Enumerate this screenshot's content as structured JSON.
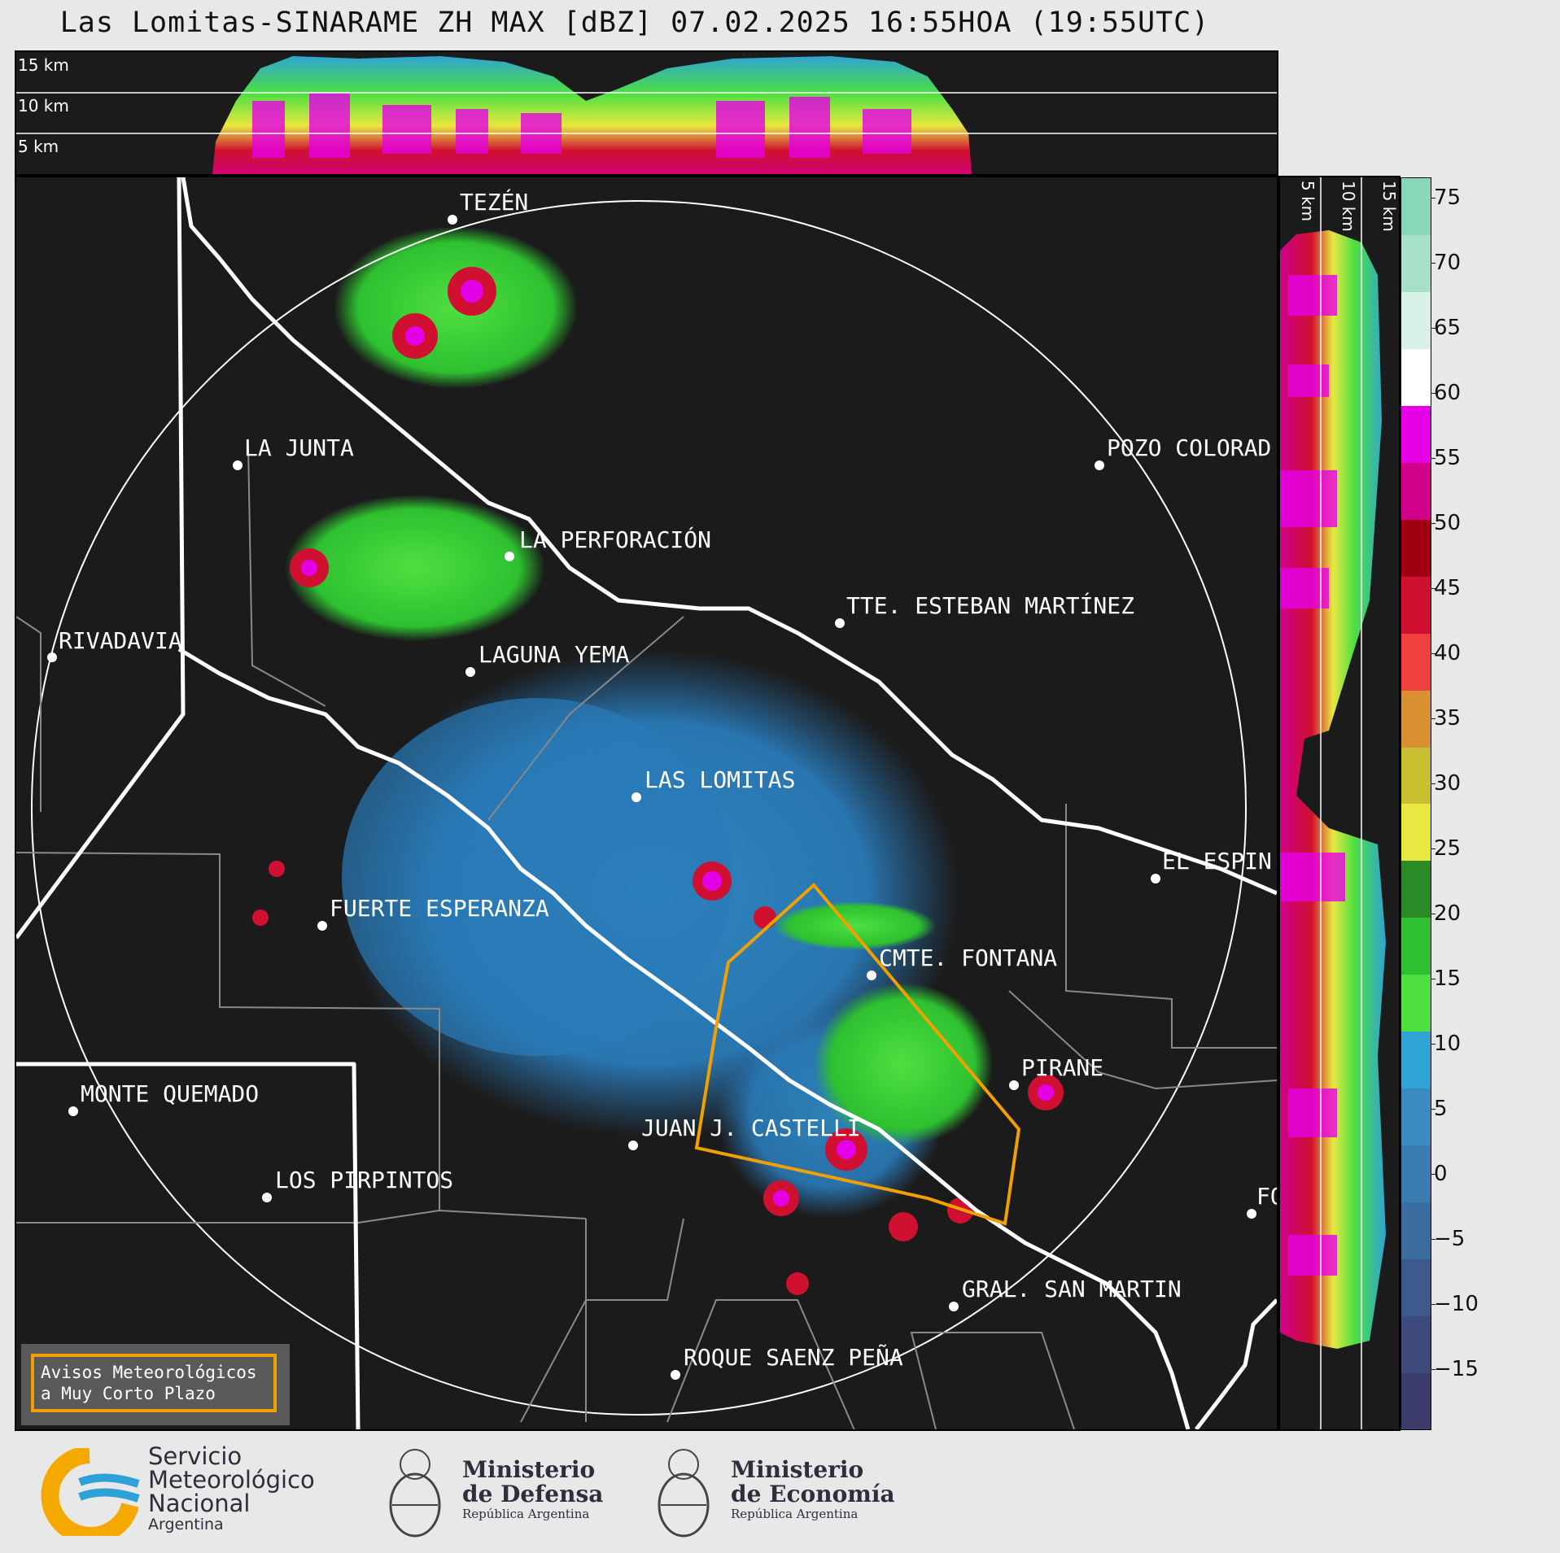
{
  "title": "Las Lomitas-SINARAME ZH MAX [dBZ] 07.02.2025 16:55HOA (19:55UTC)",
  "top_strip": {
    "height_labels": [
      "15 km",
      "10 km",
      "5 km"
    ]
  },
  "side_strip": {
    "height_labels": [
      "5 km",
      "10 km",
      "15 km"
    ]
  },
  "colorbar": {
    "ticks": [
      "75",
      "70",
      "65",
      "60",
      "55",
      "50",
      "45",
      "40",
      "35",
      "30",
      "25",
      "20",
      "15",
      "10",
      "5",
      "0",
      "−5",
      "−10",
      "−15"
    ],
    "colors": [
      "#3c3c6c",
      "#3e4a7c",
      "#3e5a8c",
      "#3a6ca0",
      "#3a7cb0",
      "#3a8cc0",
      "#2fa4d4",
      "#4ee040",
      "#2ec030",
      "#2a8a26",
      "#e8e840",
      "#c8c030",
      "#d89030",
      "#f04040",
      "#d01030",
      "#a00010",
      "#d0008a",
      "#e600e6",
      "#ffffff",
      "#d8f0e6",
      "#a6e0c8",
      "#88d8b8"
    ]
  },
  "cities": [
    {
      "name": "TEZÉN"
    },
    {
      "name": "LA JUNTA"
    },
    {
      "name": "POZO COLORAD"
    },
    {
      "name": "LA PERFORACIÓN"
    },
    {
      "name": "TTE. ESTEBAN MARTÍNEZ"
    },
    {
      "name": "RIVADAVIA"
    },
    {
      "name": "LAGUNA YEMA"
    },
    {
      "name": "LAS LOMITAS"
    },
    {
      "name": "EL ESPIN"
    },
    {
      "name": "FUERTE ESPERANZA"
    },
    {
      "name": "CMTE. FONTANA"
    },
    {
      "name": "PIRANE"
    },
    {
      "name": "MONTE QUEMADO"
    },
    {
      "name": "JUAN J. CASTELLI"
    },
    {
      "name": "LOS PIRPINTOS"
    },
    {
      "name": "GRAL. SAN MARTIN"
    },
    {
      "name": "ROQUE SAENZ PEÑA"
    },
    {
      "name": "FO"
    }
  ],
  "avisos": {
    "line1": "Avisos Meteorológicos",
    "line2": "a Muy Corto Plazo"
  },
  "logos": {
    "smn": {
      "line1": "Servicio",
      "line2": "Meteorológico",
      "line3": "Nacional",
      "line4": "Argentina"
    },
    "defensa": {
      "line1": "Ministerio",
      "line2": "de Defensa",
      "line3": "República Argentina"
    },
    "economia": {
      "line1": "Ministerio",
      "line2": "de Economía",
      "line3": "República Argentina"
    }
  }
}
